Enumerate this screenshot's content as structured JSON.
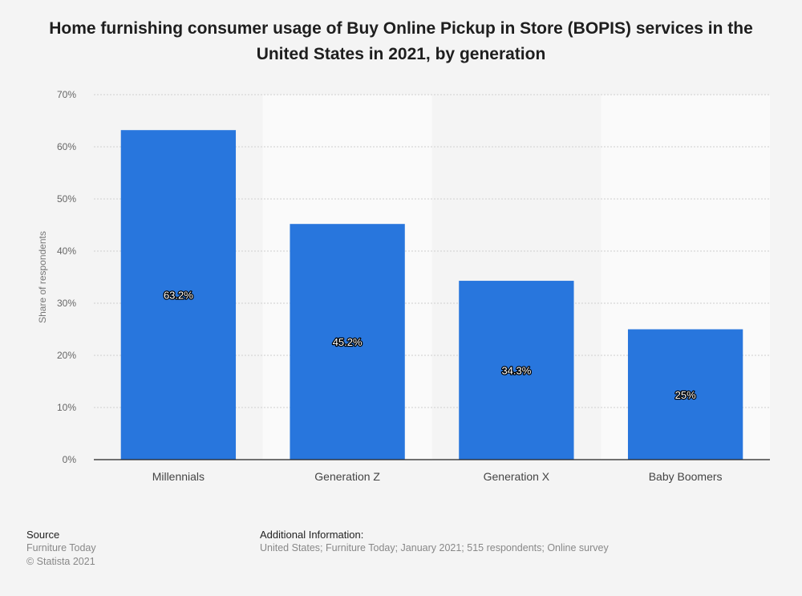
{
  "title": "Home furnishing consumer usage of Buy Online Pickup in Store (BOPIS) services in the United States in 2021, by generation",
  "chart_data": {
    "type": "bar",
    "categories": [
      "Millennials",
      "Generation Z",
      "Generation X",
      "Baby Boomers"
    ],
    "values": [
      63.2,
      45.2,
      34.3,
      25
    ],
    "value_labels": [
      "63.2%",
      "45.2%",
      "34.3%",
      "25%"
    ],
    "title": "Home furnishing consumer usage of Buy Online Pickup in Store (BOPIS) services in the United States in 2021, by generation",
    "xlabel": "",
    "ylabel": "Share of respondents",
    "ylim": [
      0,
      70
    ],
    "yticks": [
      0,
      10,
      20,
      30,
      40,
      50,
      60,
      70
    ],
    "ytick_labels": [
      "0%",
      "10%",
      "20%",
      "30%",
      "40%",
      "50%",
      "60%",
      "70%"
    ],
    "grid": true,
    "bar_color": "#2876dd"
  },
  "footer": {
    "source_heading": "Source",
    "source_lines": [
      "Furniture Today",
      "© Statista 2021"
    ],
    "additional_heading": "Additional Information:",
    "additional_text": "United States; Furniture Today; January 2021; 515 respondents; Online survey"
  }
}
